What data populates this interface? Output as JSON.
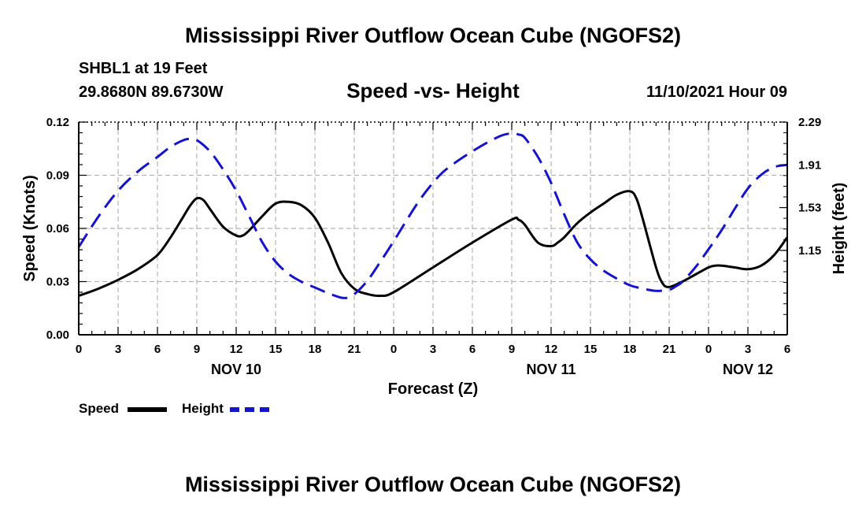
{
  "page": {
    "title": "Mississippi River Outflow Ocean Cube (NGOFS2)",
    "footer_title": "Mississippi River Outflow Ocean Cube (NGOFS2)",
    "station": "SHBL1 at 19 Feet",
    "coordinates": "29.8680N  89.6730W",
    "subtitle": "Speed -vs- Height",
    "datetime": "11/10/2021 Hour 09"
  },
  "legend": {
    "speed_label": "Speed",
    "height_label": "Height"
  },
  "colors": {
    "speed": "#000000",
    "height": "#1414cc",
    "grid": "#b4b4b4"
  },
  "chart_data": {
    "type": "line",
    "title": "Speed -vs- Height",
    "xlabel": "Forecast (Z)",
    "ylabel": "Speed (Knots)",
    "y2label": "Height (feet)",
    "xlim": [
      0,
      54
    ],
    "ylim": [
      0,
      0.12
    ],
    "y2lim": [
      0.4,
      2.29
    ],
    "x_ticks": [
      0,
      3,
      6,
      9,
      12,
      15,
      18,
      21,
      24,
      27,
      30,
      33,
      36,
      39,
      42,
      45,
      48,
      51,
      54
    ],
    "x_tick_labels": [
      "0",
      "3",
      "6",
      "9",
      "12",
      "15",
      "18",
      "21",
      "0",
      "3",
      "6",
      "9",
      "12",
      "15",
      "18",
      "21",
      "0",
      "3",
      "6"
    ],
    "y_ticks": [
      0,
      0.03,
      0.06,
      0.09,
      0.12
    ],
    "y_tick_labels": [
      "0.00",
      "0.03",
      "0.06",
      "0.09",
      "0.12"
    ],
    "y2_ticks": [
      1.15,
      1.53,
      1.91,
      2.29
    ],
    "y2_tick_labels": [
      "1.15",
      "1.53",
      "1.91",
      "2.29"
    ],
    "day_labels": [
      {
        "x": 12,
        "label": "NOV 10"
      },
      {
        "x": 36,
        "label": "NOV 11"
      },
      {
        "x": 51,
        "label": "NOV 12"
      }
    ],
    "grid": true,
    "series": [
      {
        "name": "Speed",
        "axis": "left",
        "style": "solid",
        "x": [
          0,
          1.5,
          3,
          4.5,
          6,
          7,
          8,
          8.5,
          9,
          9.5,
          10,
          11,
          12,
          12.5,
          13,
          14,
          15,
          16,
          17,
          18,
          19,
          20,
          21,
          22,
          23,
          24,
          27,
          30,
          33,
          33.5,
          34,
          35,
          36,
          36.5,
          37,
          38,
          39,
          40,
          41,
          42,
          42.5,
          43,
          44,
          44.5,
          45,
          46,
          47,
          48,
          48.5,
          49,
          50,
          51,
          52,
          53,
          54
        ],
        "values": [
          0.022,
          0.026,
          0.031,
          0.037,
          0.045,
          0.055,
          0.067,
          0.073,
          0.077,
          0.076,
          0.071,
          0.061,
          0.056,
          0.056,
          0.059,
          0.067,
          0.074,
          0.075,
          0.073,
          0.066,
          0.052,
          0.035,
          0.026,
          0.023,
          0.022,
          0.024,
          0.038,
          0.052,
          0.065,
          0.065,
          0.062,
          0.052,
          0.05,
          0.052,
          0.055,
          0.063,
          0.069,
          0.074,
          0.079,
          0.081,
          0.077,
          0.065,
          0.038,
          0.029,
          0.027,
          0.03,
          0.034,
          0.038,
          0.039,
          0.039,
          0.038,
          0.037,
          0.039,
          0.045,
          0.055
        ]
      },
      {
        "name": "Height",
        "axis": "right",
        "style": "dashed",
        "x": [
          0,
          1.5,
          3,
          4.5,
          6,
          7,
          8,
          8.5,
          9,
          10,
          11,
          12,
          13,
          14,
          15,
          16,
          17,
          18,
          19,
          20,
          20.5,
          21,
          22,
          23,
          24,
          25,
          26,
          27,
          28,
          30,
          32,
          33,
          33.5,
          34,
          35,
          36,
          37,
          38,
          39,
          40,
          41,
          42,
          43,
          44,
          45,
          45.5,
          46,
          47,
          48,
          49,
          50,
          51,
          52,
          53,
          54
        ],
        "values": [
          1.18,
          1.45,
          1.68,
          1.85,
          1.98,
          2.07,
          2.13,
          2.14,
          2.13,
          2.03,
          1.87,
          1.68,
          1.45,
          1.22,
          1.05,
          0.94,
          0.87,
          0.82,
          0.77,
          0.73,
          0.73,
          0.76,
          0.88,
          1.05,
          1.23,
          1.42,
          1.6,
          1.75,
          1.87,
          2.03,
          2.16,
          2.19,
          2.18,
          2.15,
          1.98,
          1.75,
          1.47,
          1.22,
          1.07,
          0.97,
          0.9,
          0.84,
          0.81,
          0.79,
          0.8,
          0.83,
          0.87,
          1.0,
          1.16,
          1.33,
          1.52,
          1.7,
          1.82,
          1.89,
          1.91
        ]
      }
    ]
  }
}
